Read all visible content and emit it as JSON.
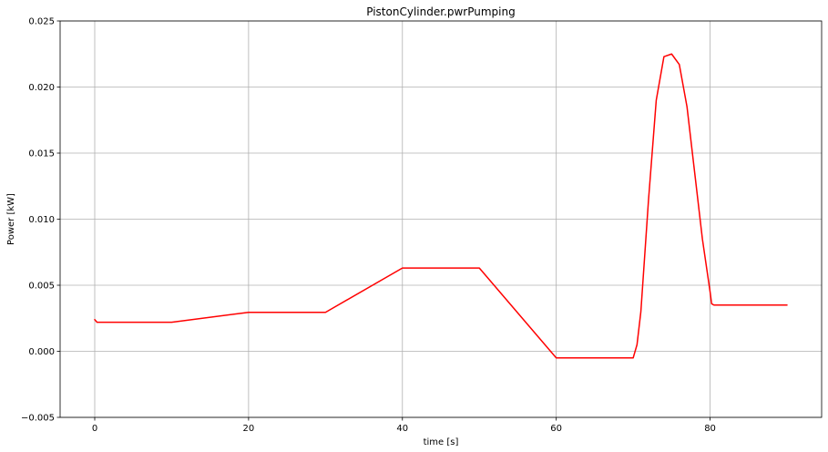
{
  "chart_data": {
    "type": "line",
    "title": "PistonCylinder.pwrPumping",
    "xlabel": "time [s]",
    "ylabel": "Power [kW]",
    "xlim": [
      -4.5,
      94.5
    ],
    "ylim": [
      -0.005,
      0.025
    ],
    "xticks": [
      0,
      20,
      40,
      60,
      80
    ],
    "xtick_labels": [
      "0",
      "20",
      "40",
      "60",
      "80"
    ],
    "yticks": [
      -0.005,
      0.0,
      0.005,
      0.01,
      0.015,
      0.02,
      0.025
    ],
    "ytick_labels": [
      "−0.005",
      "0.000",
      "0.005",
      "0.010",
      "0.015",
      "0.020",
      "0.025"
    ],
    "grid": true,
    "colors": {
      "line": "#ff0000",
      "grid": "#b0b0b0",
      "axes": "#000000"
    },
    "series": [
      {
        "x": [
          0,
          0.3,
          10,
          20,
          30,
          40,
          50,
          60,
          70,
          70.5,
          71,
          72,
          73,
          74,
          75,
          76,
          77,
          78,
          79,
          80,
          80.2,
          80.5,
          90
        ],
        "y": [
          0.0024,
          0.0022,
          0.0022,
          0.00295,
          0.00295,
          0.0063,
          0.0063,
          -0.0005,
          -0.0005,
          0.0005,
          0.003,
          0.0115,
          0.019,
          0.0223,
          0.0225,
          0.0217,
          0.0185,
          0.0135,
          0.0085,
          0.0045,
          0.0036,
          0.0035,
          0.0035
        ]
      }
    ]
  }
}
